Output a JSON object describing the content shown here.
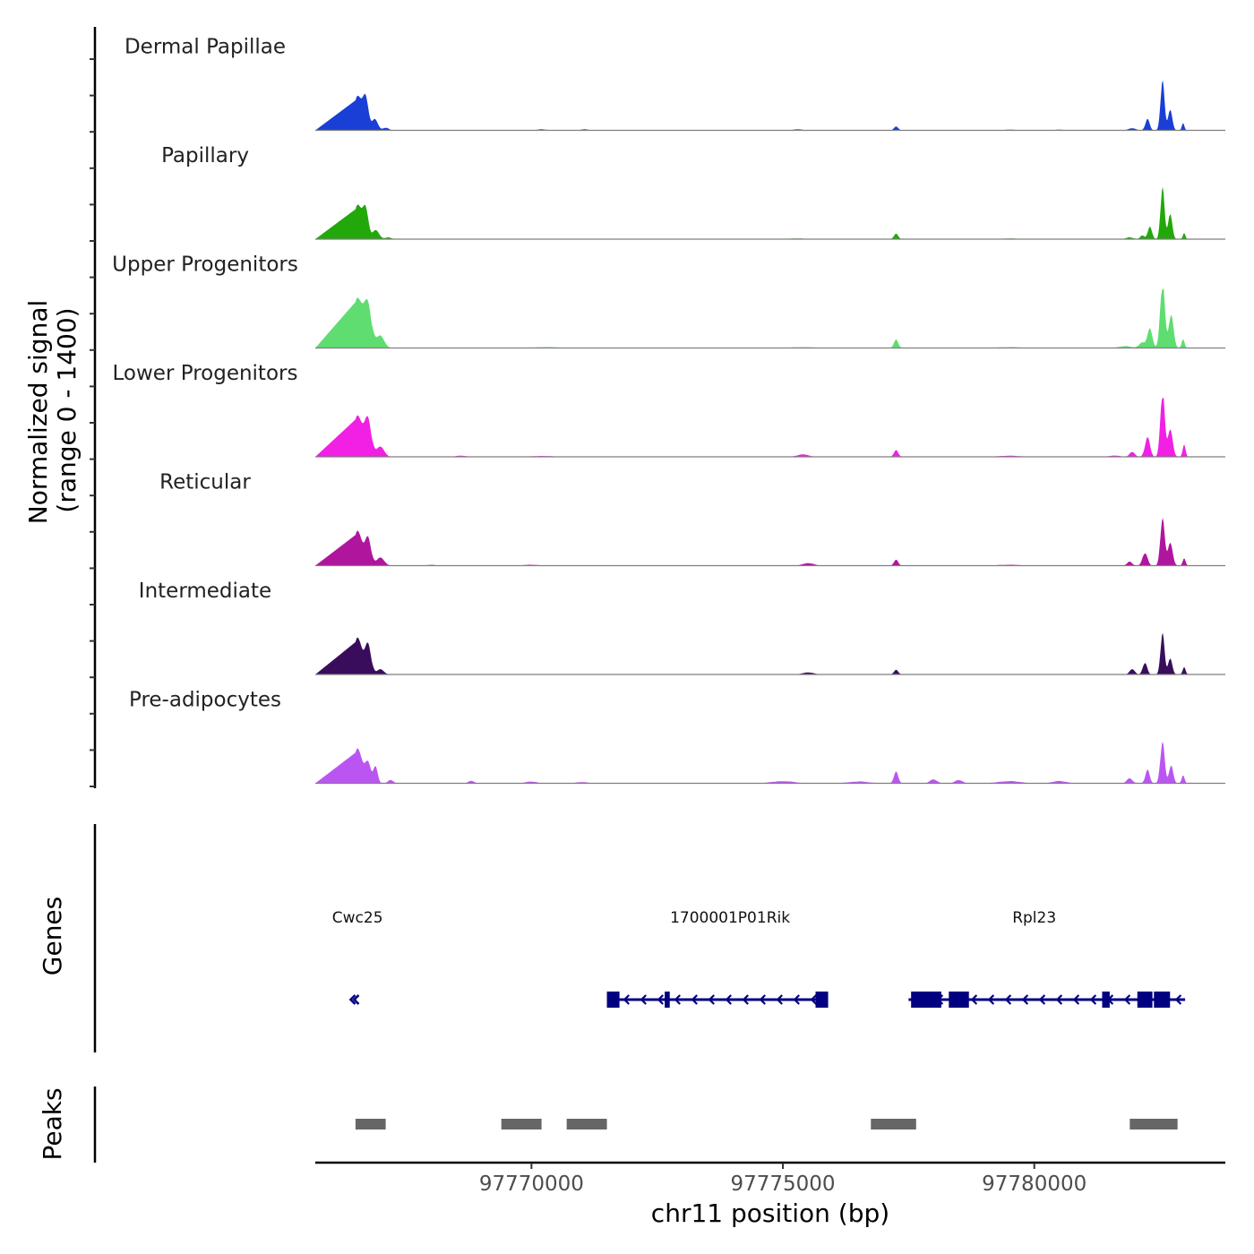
{
  "chart_data": {
    "type": "area",
    "title": "",
    "chromosome": "chr11",
    "xlabel": "chr11 position (bp)",
    "ylabel": "Normalized signal",
    "ylabel_range": "(range 0 - 1400)",
    "ylim": [
      0,
      1400
    ],
    "xlim": [
      97765700,
      97783800
    ],
    "x_ticks": [
      97770000,
      97775000,
      97780000
    ],
    "x_tick_labels": [
      "97770000",
      "97775000",
      "97780000"
    ],
    "tracks": [
      {
        "name": "Dermal Papillae",
        "color": "#1a3fd6",
        "peaks": [
          [
            97766550,
            830,
            110
          ],
          [
            97766700,
            650,
            80
          ],
          [
            97766880,
            250,
            90
          ],
          [
            97767100,
            60,
            80
          ],
          [
            97770200,
            25,
            120
          ],
          [
            97771050,
            25,
            100
          ],
          [
            97775300,
            25,
            120
          ],
          [
            97777250,
            90,
            60
          ],
          [
            97779500,
            15,
            200
          ],
          [
            97780500,
            15,
            150
          ],
          [
            97781950,
            50,
            100
          ],
          [
            97782250,
            250,
            60
          ],
          [
            97782550,
            1200,
            55
          ],
          [
            97782700,
            450,
            60
          ],
          [
            97782960,
            180,
            35
          ]
        ]
      },
      {
        "name": "Papillary",
        "color": "#22a80a",
        "peaks": [
          [
            97766550,
            830,
            110
          ],
          [
            97766700,
            600,
            80
          ],
          [
            97766900,
            200,
            100
          ],
          [
            97767150,
            40,
            80
          ],
          [
            97770500,
            10,
            300
          ],
          [
            97775300,
            15,
            250
          ],
          [
            97777250,
            130,
            60
          ],
          [
            97779500,
            15,
            250
          ],
          [
            97781900,
            40,
            100
          ],
          [
            97782150,
            90,
            60
          ],
          [
            97782300,
            260,
            60
          ],
          [
            97782550,
            1250,
            55
          ],
          [
            97782700,
            550,
            60
          ],
          [
            97782980,
            150,
            35
          ]
        ]
      },
      {
        "name": "Upper Progenitors",
        "color": "#5fdd70",
        "peaks": [
          [
            97766550,
            1200,
            130
          ],
          [
            97766750,
            900,
            110
          ],
          [
            97767000,
            300,
            100
          ],
          [
            97770300,
            20,
            350
          ],
          [
            97775400,
            20,
            300
          ],
          [
            97777250,
            200,
            60
          ],
          [
            97779500,
            20,
            300
          ],
          [
            97781800,
            40,
            180
          ],
          [
            97782150,
            130,
            90
          ],
          [
            97782300,
            400,
            70
          ],
          [
            97782550,
            1600,
            65
          ],
          [
            97782720,
            700,
            70
          ],
          [
            97782960,
            220,
            40
          ]
        ]
      },
      {
        "name": "Lower Progenitors",
        "color": "#f21fe4",
        "peaks": [
          [
            97766550,
            1000,
            120
          ],
          [
            97766750,
            800,
            100
          ],
          [
            97767000,
            250,
            100
          ],
          [
            97768600,
            25,
            150
          ],
          [
            97770200,
            20,
            300
          ],
          [
            97775400,
            60,
            150
          ],
          [
            97777250,
            160,
            60
          ],
          [
            97779500,
            25,
            300
          ],
          [
            97781600,
            30,
            150
          ],
          [
            97781950,
            120,
            70
          ],
          [
            97782250,
            430,
            70
          ],
          [
            97782550,
            1600,
            60
          ],
          [
            97782700,
            600,
            70
          ],
          [
            97782980,
            300,
            40
          ]
        ]
      },
      {
        "name": "Reticular",
        "color": "#b0159e",
        "peaks": [
          [
            97766550,
            850,
            110
          ],
          [
            97766750,
            600,
            90
          ],
          [
            97767000,
            200,
            100
          ],
          [
            97768000,
            20,
            100
          ],
          [
            97770000,
            20,
            200
          ],
          [
            97775500,
            60,
            150
          ],
          [
            97777250,
            140,
            60
          ],
          [
            97779500,
            20,
            300
          ],
          [
            97781900,
            90,
            70
          ],
          [
            97782200,
            300,
            70
          ],
          [
            97782550,
            1140,
            60
          ],
          [
            97782700,
            500,
            70
          ],
          [
            97782980,
            180,
            40
          ]
        ]
      },
      {
        "name": "Intermediate",
        "color": "#3a0d5c",
        "peaks": [
          [
            97766550,
            900,
            110
          ],
          [
            97766750,
            650,
            90
          ],
          [
            97767000,
            130,
            90
          ],
          [
            97775500,
            50,
            150
          ],
          [
            97777250,
            110,
            60
          ],
          [
            97781950,
            130,
            70
          ],
          [
            97782200,
            280,
            60
          ],
          [
            97782550,
            1000,
            55
          ],
          [
            97782700,
            350,
            60
          ],
          [
            97782980,
            180,
            40
          ]
        ]
      },
      {
        "name": "Pre-adipocytes",
        "color": "#bb55f2",
        "peaks": [
          [
            97766550,
            850,
            110
          ],
          [
            97766750,
            450,
            90
          ],
          [
            97766900,
            350,
            60
          ],
          [
            97767200,
            70,
            80
          ],
          [
            97768800,
            60,
            80
          ],
          [
            97770000,
            40,
            150
          ],
          [
            97771000,
            30,
            150
          ],
          [
            97775000,
            50,
            300
          ],
          [
            97776500,
            40,
            300
          ],
          [
            97777250,
            280,
            60
          ],
          [
            97778000,
            90,
            100
          ],
          [
            97778500,
            80,
            100
          ],
          [
            97779500,
            50,
            300
          ],
          [
            97780500,
            50,
            200
          ],
          [
            97781900,
            110,
            80
          ],
          [
            97782250,
            300,
            60
          ],
          [
            97782550,
            1000,
            60
          ],
          [
            97782720,
            380,
            60
          ],
          [
            97782960,
            200,
            40
          ]
        ]
      }
    ],
    "genes": [
      {
        "name": "Cwc25",
        "strand": "-",
        "start": 97766350,
        "end": 97766400,
        "exons": [],
        "label_pos": 97766540
      },
      {
        "name": "1700001P01Rik",
        "strand": "-",
        "start": 97771600,
        "end": 97775800,
        "exons": [
          [
            97771500,
            97771750
          ],
          [
            97772650,
            97772750
          ],
          [
            97775650,
            97775900
          ]
        ],
        "label_pos": 97773950
      },
      {
        "name": "Rpl23",
        "strand": "-",
        "start": 97777500,
        "end": 97783000,
        "exons": [
          [
            97777550,
            97778150
          ],
          [
            97778300,
            97778700
          ],
          [
            97781350,
            97781500
          ],
          [
            97782050,
            97782350
          ],
          [
            97782380,
            97782700
          ]
        ],
        "label_pos": 97780000
      }
    ],
    "genes_panel_label": "Genes",
    "peaks_panel_label": "Peaks",
    "peaks": [
      [
        97766500,
        97767100
      ],
      [
        97769400,
        97770200
      ],
      [
        97770700,
        97771500
      ],
      [
        97776750,
        97777650
      ],
      [
        97781900,
        97782850
      ]
    ],
    "peak_color": "#666666",
    "gene_color": "#000080"
  }
}
